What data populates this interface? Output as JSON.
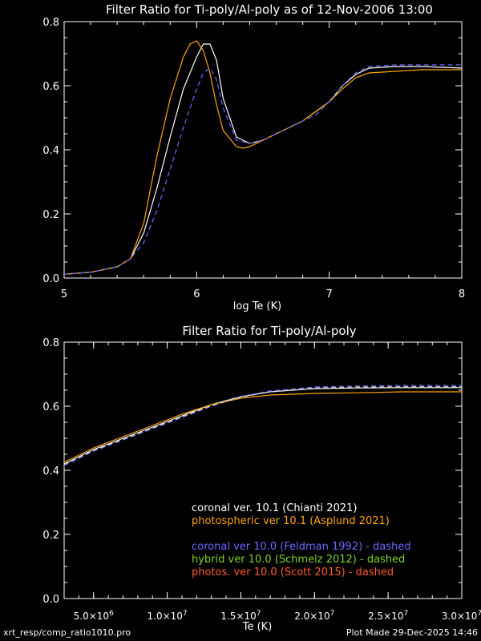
{
  "chart_data": [
    {
      "type": "line",
      "title": "Filter Ratio for Ti-poly/Al-poly as of 12-Nov-2006 13:00",
      "xlabel": "log Te (K)",
      "ylabel": "",
      "xlim": [
        5,
        8
      ],
      "ylim": [
        0,
        0.8
      ],
      "xticks": [
        "5",
        "6",
        "7",
        "8"
      ],
      "yticks": [
        "0.0",
        "0.2",
        "0.4",
        "0.6",
        "0.8"
      ],
      "series": [
        {
          "color": "#ffffff",
          "dash": false,
          "x": [
            5.0,
            5.2,
            5.4,
            5.5,
            5.6,
            5.7,
            5.8,
            5.9,
            6.0,
            6.05,
            6.1,
            6.15,
            6.2,
            6.3,
            6.4,
            6.5,
            6.6,
            6.7,
            6.8,
            6.9,
            7.0,
            7.1,
            7.2,
            7.3,
            7.5,
            7.7,
            8.0
          ],
          "y": [
            0.012,
            0.018,
            0.035,
            0.06,
            0.14,
            0.28,
            0.44,
            0.59,
            0.69,
            0.73,
            0.73,
            0.68,
            0.56,
            0.44,
            0.42,
            0.43,
            0.45,
            0.47,
            0.49,
            0.52,
            0.55,
            0.6,
            0.635,
            0.655,
            0.66,
            0.66,
            0.655
          ]
        },
        {
          "color": "#ffa500",
          "dash": false,
          "x": [
            5.0,
            5.2,
            5.4,
            5.5,
            5.6,
            5.7,
            5.8,
            5.9,
            5.95,
            6.0,
            6.05,
            6.1,
            6.15,
            6.2,
            6.3,
            6.35,
            6.4,
            6.5,
            6.6,
            6.7,
            6.8,
            6.9,
            7.0,
            7.1,
            7.2,
            7.3,
            7.5,
            7.7,
            8.0
          ],
          "y": [
            0.012,
            0.018,
            0.035,
            0.06,
            0.17,
            0.38,
            0.56,
            0.69,
            0.73,
            0.74,
            0.71,
            0.64,
            0.54,
            0.46,
            0.41,
            0.405,
            0.41,
            0.43,
            0.45,
            0.47,
            0.49,
            0.52,
            0.55,
            0.59,
            0.625,
            0.64,
            0.645,
            0.65,
            0.65
          ]
        },
        {
          "color": "#6a6aff",
          "dash": true,
          "x": [
            5.0,
            5.2,
            5.4,
            5.5,
            5.6,
            5.7,
            5.8,
            5.9,
            6.0,
            6.05,
            6.1,
            6.15,
            6.2,
            6.3,
            6.4,
            6.5,
            6.6,
            6.7,
            6.8,
            6.9,
            7.0,
            7.1,
            7.2,
            7.3,
            7.5,
            7.7,
            8.0
          ],
          "y": [
            0.012,
            0.018,
            0.035,
            0.06,
            0.11,
            0.21,
            0.34,
            0.47,
            0.59,
            0.64,
            0.655,
            0.62,
            0.53,
            0.43,
            0.42,
            0.43,
            0.45,
            0.47,
            0.49,
            0.51,
            0.55,
            0.6,
            0.64,
            0.66,
            0.665,
            0.665,
            0.665
          ]
        }
      ]
    },
    {
      "type": "line",
      "title": "Filter Ratio for Ti-poly/Al-poly",
      "xlabel": "Te (K)",
      "ylabel": "",
      "xlim": [
        3000000,
        30000000
      ],
      "ylim": [
        0,
        0.8
      ],
      "xticks": [
        {
          "value": 5000000,
          "mant": "5.0",
          "exp": "6"
        },
        {
          "value": 10000000,
          "mant": "1.0",
          "exp": "7"
        },
        {
          "value": 15000000,
          "mant": "1.5",
          "exp": "7"
        },
        {
          "value": 20000000,
          "mant": "2.0",
          "exp": "7"
        },
        {
          "value": 25000000,
          "mant": "2.5",
          "exp": "7"
        },
        {
          "value": 30000000,
          "mant": "3.0",
          "exp": "7"
        }
      ],
      "yticks": [
        "0.0",
        "0.2",
        "0.4",
        "0.6",
        "0.8"
      ],
      "series": [
        {
          "color": "#ffffff",
          "dash": false,
          "x": [
            3000000,
            5000000,
            7000000,
            9000000,
            11000000,
            13000000,
            15000000,
            17000000,
            20000000,
            23000000,
            26000000,
            30000000
          ],
          "y": [
            0.42,
            0.465,
            0.5,
            0.535,
            0.57,
            0.605,
            0.63,
            0.645,
            0.655,
            0.657,
            0.658,
            0.658
          ]
        },
        {
          "color": "#ffa500",
          "dash": false,
          "x": [
            3000000,
            5000000,
            7000000,
            9000000,
            11000000,
            13000000,
            15000000,
            17000000,
            20000000,
            23000000,
            26000000,
            30000000
          ],
          "y": [
            0.425,
            0.47,
            0.505,
            0.54,
            0.575,
            0.605,
            0.625,
            0.635,
            0.64,
            0.642,
            0.645,
            0.645
          ]
        },
        {
          "color": "#6a6aff",
          "dash": true,
          "x": [
            3000000,
            5000000,
            7000000,
            9000000,
            11000000,
            13000000,
            15000000,
            17000000,
            20000000,
            23000000,
            26000000,
            30000000
          ],
          "y": [
            0.415,
            0.46,
            0.495,
            0.53,
            0.565,
            0.6,
            0.63,
            0.648,
            0.66,
            0.663,
            0.665,
            0.665
          ]
        },
        {
          "color": "#cccccc",
          "dash": true,
          "x": [
            3000000,
            5000000,
            7000000,
            9000000,
            11000000,
            13000000,
            15000000,
            17000000,
            20000000,
            23000000,
            26000000,
            30000000
          ],
          "y": [
            0.418,
            0.462,
            0.497,
            0.532,
            0.567,
            0.602,
            0.628,
            0.645,
            0.657,
            0.66,
            0.661,
            0.661
          ]
        }
      ],
      "legend": [
        {
          "text": "coronal ver. 10.1 (Chianti 2021)",
          "color": "#ffffff"
        },
        {
          "text": "photospheric ver 10.1 (Asplund 2021)",
          "color": "#ffa500"
        },
        {
          "text": "coronal ver 10.0 (Feldman 1992) - dashed",
          "color": "#6a6aff"
        },
        {
          "text": "hybrid ver 10.0 (Schmelz 2012) - dashed",
          "color": "#7ed321"
        },
        {
          "text": "photos. ver 10.0 (Scott 2015) - dashed",
          "color": "#ff5a2a"
        }
      ]
    }
  ],
  "footer": {
    "left": "xrt_resp/comp_ratio1010.pro",
    "right": "Plot Made 29-Dec-2025 14:46"
  }
}
